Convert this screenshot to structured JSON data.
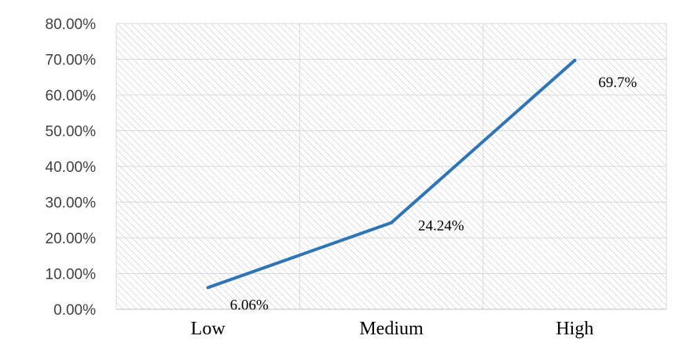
{
  "chart_data": {
    "type": "line",
    "categories": [
      "Low",
      "Medium",
      "High"
    ],
    "series": [
      {
        "values": [
          6.06,
          24.24,
          69.7
        ],
        "labels": [
          "6.06%",
          "24.24%",
          "69.7%"
        ]
      }
    ],
    "ylim": [
      0,
      80
    ],
    "y_ticks": [
      "0.00%",
      "10.00%",
      "20.00%",
      "30.00%",
      "40.00%",
      "50.00%",
      "60.00%",
      "70.00%",
      "80.00%"
    ],
    "grid": true,
    "legend": "none",
    "line_color": "#2E75B6"
  }
}
